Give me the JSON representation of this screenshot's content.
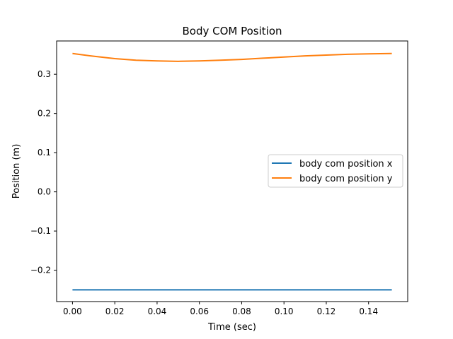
{
  "chart_data": {
    "type": "line",
    "title": "Body COM Position",
    "xlabel": "Time (sec)",
    "ylabel": "Position (m)",
    "xlim": [
      -0.0075,
      0.1585
    ],
    "ylim": [
      -0.28,
      0.385
    ],
    "xticks": [
      0.0,
      0.02,
      0.04,
      0.06,
      0.08,
      0.1,
      0.12,
      0.14
    ],
    "xtick_labels": [
      "0.00",
      "0.02",
      "0.04",
      "0.06",
      "0.08",
      "0.10",
      "0.12",
      "0.14"
    ],
    "yticks": [
      -0.2,
      -0.1,
      0.0,
      0.1,
      0.2,
      0.3
    ],
    "ytick_labels": [
      "−0.2",
      "−0.1",
      "0.0",
      "0.1",
      "0.2",
      "0.3"
    ],
    "grid": false,
    "legend_position": "center-right",
    "series": [
      {
        "name": "body com position x",
        "color": "#1f77b4",
        "x": [
          0.0,
          0.02,
          0.04,
          0.06,
          0.08,
          0.1,
          0.12,
          0.14,
          0.151
        ],
        "y": [
          -0.25,
          -0.25,
          -0.25,
          -0.25,
          -0.25,
          -0.25,
          -0.25,
          -0.25,
          -0.25
        ]
      },
      {
        "name": "body com position y",
        "color": "#ff7f0e",
        "x": [
          0.0,
          0.01,
          0.02,
          0.03,
          0.04,
          0.05,
          0.06,
          0.07,
          0.08,
          0.09,
          0.1,
          0.11,
          0.12,
          0.13,
          0.14,
          0.151
        ],
        "y": [
          0.353,
          0.346,
          0.34,
          0.336,
          0.334,
          0.333,
          0.334,
          0.336,
          0.338,
          0.341,
          0.344,
          0.347,
          0.349,
          0.351,
          0.352,
          0.353
        ]
      }
    ]
  }
}
